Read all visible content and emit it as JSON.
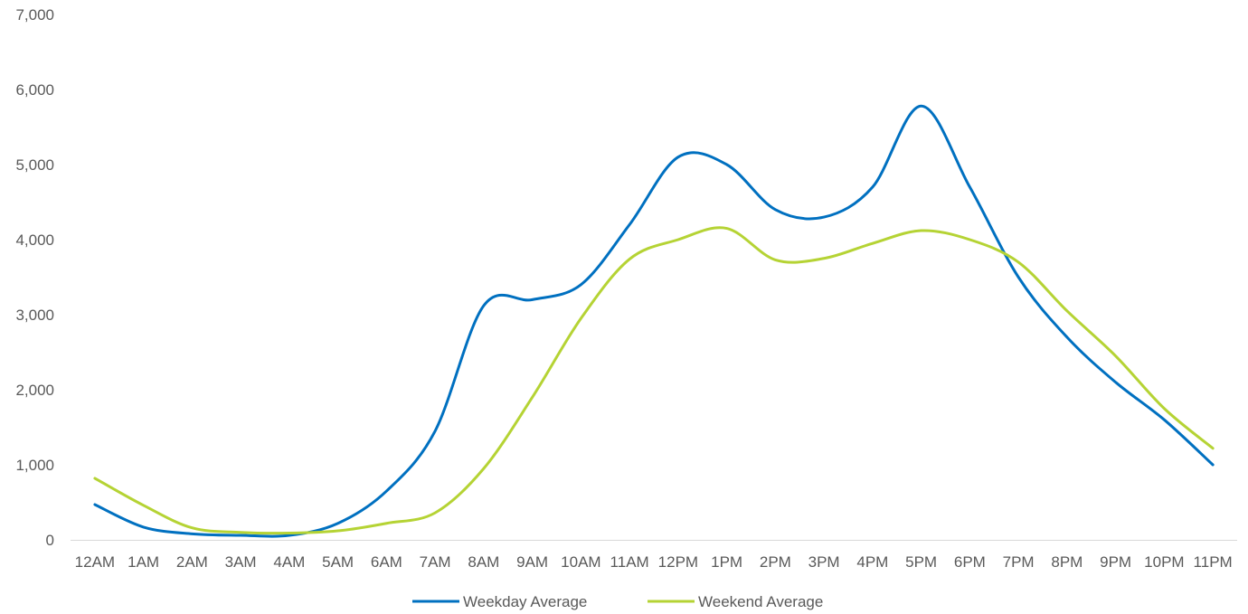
{
  "chart_data": {
    "type": "line",
    "title": "",
    "xlabel": "",
    "ylabel": "",
    "categories": [
      "12AM",
      "1AM",
      "2AM",
      "3AM",
      "4AM",
      "5AM",
      "6AM",
      "7AM",
      "8AM",
      "9AM",
      "10AM",
      "11AM",
      "12PM",
      "1PM",
      "2PM",
      "3PM",
      "4PM",
      "5PM",
      "6PM",
      "7PM",
      "8PM",
      "9PM",
      "10PM",
      "11PM"
    ],
    "ylim": [
      0,
      7000
    ],
    "yticks": [
      0,
      1000,
      2000,
      3000,
      4000,
      5000,
      6000,
      7000
    ],
    "ytick_labels": [
      "0",
      "1,000",
      "2,000",
      "3,000",
      "4,000",
      "5,000",
      "6,000",
      "7,000"
    ],
    "grid": false,
    "smooth": true,
    "legend_position": "bottom",
    "series": [
      {
        "name": "Weekday Average",
        "color": "#0070C0",
        "values": [
          470,
          170,
          80,
          60,
          60,
          220,
          650,
          1450,
          3120,
          3200,
          3400,
          4200,
          5100,
          5000,
          4400,
          4300,
          4700,
          5780,
          4700,
          3500,
          2700,
          2100,
          1600,
          1000
        ]
      },
      {
        "name": "Weekend Average",
        "color": "#B5D334",
        "values": [
          820,
          460,
          160,
          100,
          90,
          120,
          220,
          360,
          950,
          1900,
          2950,
          3740,
          4000,
          4150,
          3730,
          3750,
          3950,
          4120,
          4000,
          3700,
          3050,
          2450,
          1750,
          1220
        ]
      }
    ]
  }
}
